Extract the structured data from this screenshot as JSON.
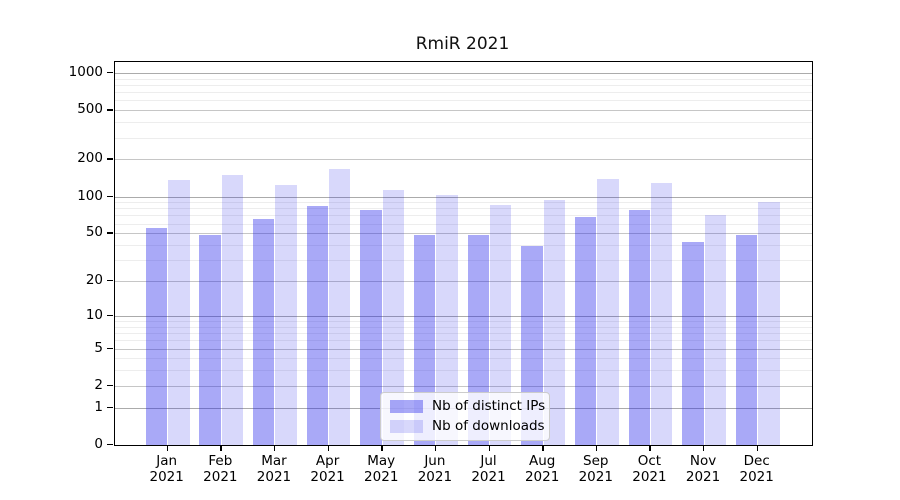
{
  "chart_data": {
    "type": "bar",
    "title": "RmiR 2021",
    "categories": [
      "Jan",
      "Feb",
      "Mar",
      "Apr",
      "May",
      "Jun",
      "Jul",
      "Aug",
      "Sep",
      "Oct",
      "Nov",
      "Dec"
    ],
    "category_sublabel": "2021",
    "series": [
      {
        "name": "Nb of distinct IPs",
        "color": "rgba(30,30,234,0.38)",
        "values": [
          55,
          48,
          65,
          83,
          77,
          48,
          48,
          39,
          68,
          78,
          42,
          48
        ]
      },
      {
        "name": "Nb of downloads",
        "color": "rgba(30,30,234,0.173)",
        "values": [
          137,
          150,
          123,
          167,
          113,
          102,
          86,
          94,
          140,
          130,
          70,
          91
        ]
      }
    ],
    "y_axis": {
      "scale": "log1p",
      "range": [
        0,
        1000
      ],
      "ticks": [
        0,
        1,
        2,
        5,
        10,
        20,
        50,
        100,
        200,
        500,
        1000
      ],
      "minor_gridlines": [
        3,
        4,
        6,
        7,
        8,
        9,
        30,
        40,
        60,
        70,
        80,
        90,
        300,
        400,
        600,
        700,
        800,
        900
      ]
    },
    "legend": {
      "position": "lower-center",
      "entries": [
        "Nb of distinct IPs",
        "Nb of downloads"
      ]
    },
    "grid": true,
    "colors": {
      "grid_minor": "#ededed",
      "grid_major": "#c6c6c6",
      "grid_decade": "#ababab",
      "spine": "#000000",
      "background": "#ffffff"
    }
  }
}
